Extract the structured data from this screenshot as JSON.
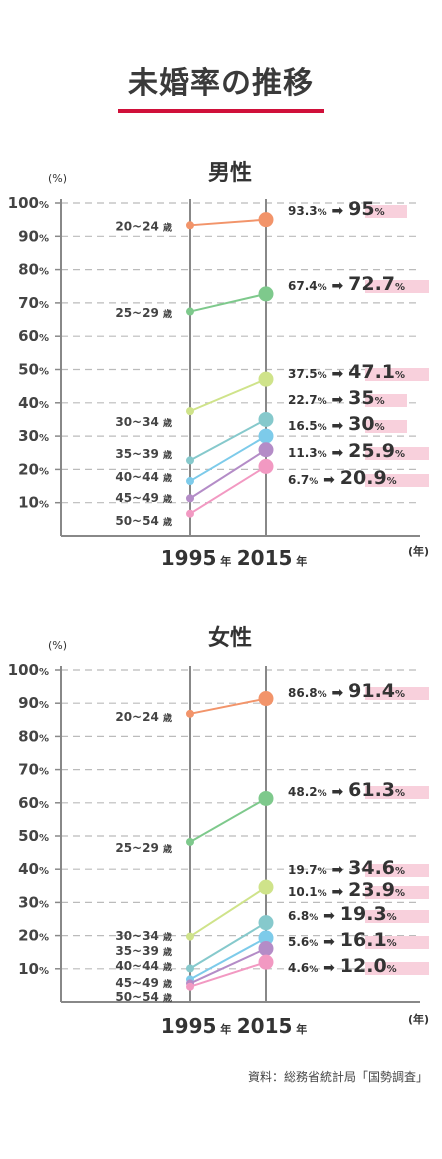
{
  "title": "未婚率の推移",
  "source": "資料：総務省統計局「国勢調査」",
  "colors": {
    "accent": "#d0103a",
    "grid": "#bbbbbb",
    "axis": "#888888",
    "highlight": "#f8d0dc",
    "series": [
      "#f2946a",
      "#7ec98c",
      "#cfe38a",
      "#86c9cc",
      "#7dcbea",
      "#b48cc7",
      "#f299c2"
    ]
  },
  "chart_data": [
    {
      "type": "line",
      "title": "男性",
      "unit_label": "(%)",
      "x_unit": "(年)",
      "year_suffix": "年",
      "ylim": [
        0,
        100
      ],
      "yticks": [
        "10%",
        "20%",
        "30%",
        "40%",
        "50%",
        "60%",
        "70%",
        "80%",
        "90%",
        "100%"
      ],
      "categories": [
        "1995",
        "2015"
      ],
      "series": [
        {
          "name": "20~24 歳",
          "values": [
            93.3,
            95
          ]
        },
        {
          "name": "25~29 歳",
          "values": [
            67.4,
            72.7
          ]
        },
        {
          "name": "30~34 歳",
          "values": [
            37.5,
            47.1
          ]
        },
        {
          "name": "35~39 歳",
          "values": [
            22.7,
            35
          ]
        },
        {
          "name": "40~44 歳",
          "values": [
            16.5,
            30
          ]
        },
        {
          "name": "45~49 歳",
          "values": [
            11.3,
            25.9
          ]
        },
        {
          "name": "50~54 歳",
          "values": [
            6.7,
            20.9
          ]
        }
      ]
    },
    {
      "type": "line",
      "title": "女性",
      "unit_label": "(%)",
      "x_unit": "(年)",
      "year_suffix": "年",
      "ylim": [
        0,
        100
      ],
      "yticks": [
        "10%",
        "20%",
        "30%",
        "40%",
        "50%",
        "60%",
        "70%",
        "80%",
        "90%",
        "100%"
      ],
      "categories": [
        "1995",
        "2015"
      ],
      "series": [
        {
          "name": "20~24 歳",
          "values": [
            86.8,
            91.4
          ]
        },
        {
          "name": "25~29 歳",
          "values": [
            48.2,
            61.3
          ]
        },
        {
          "name": "30~34 歳",
          "values": [
            19.7,
            34.6
          ]
        },
        {
          "name": "35~39 歳",
          "values": [
            10.1,
            23.9
          ]
        },
        {
          "name": "40~44 歳",
          "values": [
            6.8,
            19.3
          ]
        },
        {
          "name": "45~49 歳",
          "values": [
            5.6,
            16.1
          ]
        },
        {
          "name": "50~54 歳",
          "values": [
            4.6,
            12.0
          ]
        }
      ]
    }
  ]
}
